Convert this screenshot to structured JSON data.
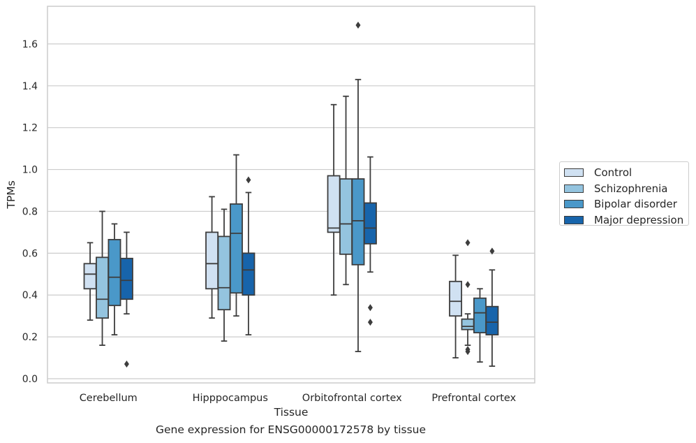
{
  "chart_data": {
    "type": "box",
    "ylabel": "TPMs",
    "xlabel": "Tissue",
    "caption": "Gene expression for ENSG00000172578 by tissue",
    "ylim": [
      -0.02,
      1.78
    ],
    "yticks": [
      "0.0",
      "0.2",
      "0.4",
      "0.6",
      "0.8",
      "1.0",
      "1.2",
      "1.4",
      "1.6"
    ],
    "grid": true,
    "legend_position": "right-center",
    "categories": [
      "Cerebellum",
      "Hipppocampus",
      "Orbitofrontal cortex",
      "Prefrontal cortex"
    ],
    "series": [
      {
        "name": "Control",
        "color": "#d0e1f2",
        "boxes": [
          {
            "whislo": 0.28,
            "q1": 0.43,
            "med": 0.5,
            "q3": 0.55,
            "whishi": 0.65,
            "fliers": []
          },
          {
            "whislo": 0.29,
            "q1": 0.43,
            "med": 0.55,
            "q3": 0.7,
            "whishi": 0.87,
            "fliers": []
          },
          {
            "whislo": 0.4,
            "q1": 0.7,
            "med": 0.72,
            "q3": 0.97,
            "whishi": 1.31,
            "fliers": []
          },
          {
            "whislo": 0.1,
            "q1": 0.3,
            "med": 0.37,
            "q3": 0.465,
            "whishi": 0.59,
            "fliers": []
          }
        ]
      },
      {
        "name": "Schizophrenia",
        "color": "#94c4df",
        "boxes": [
          {
            "whislo": 0.16,
            "q1": 0.29,
            "med": 0.38,
            "q3": 0.58,
            "whishi": 0.8,
            "fliers": []
          },
          {
            "whislo": 0.18,
            "q1": 0.33,
            "med": 0.435,
            "q3": 0.68,
            "whishi": 0.81,
            "fliers": []
          },
          {
            "whislo": 0.45,
            "q1": 0.595,
            "med": 0.74,
            "q3": 0.955,
            "whishi": 1.35,
            "fliers": []
          },
          {
            "whislo": 0.16,
            "q1": 0.235,
            "med": 0.25,
            "q3": 0.285,
            "whishi": 0.31,
            "fliers": [
              0.65,
              0.45,
              0.14,
              0.13
            ]
          }
        ]
      },
      {
        "name": "Bipolar disorder",
        "color": "#4a98c9",
        "boxes": [
          {
            "whislo": 0.21,
            "q1": 0.35,
            "med": 0.485,
            "q3": 0.665,
            "whishi": 0.74,
            "fliers": []
          },
          {
            "whislo": 0.3,
            "q1": 0.41,
            "med": 0.695,
            "q3": 0.835,
            "whishi": 1.07,
            "fliers": []
          },
          {
            "whislo": 0.13,
            "q1": 0.545,
            "med": 0.755,
            "q3": 0.955,
            "whishi": 1.43,
            "fliers": [
              1.69
            ]
          },
          {
            "whislo": 0.08,
            "q1": 0.22,
            "med": 0.315,
            "q3": 0.385,
            "whishi": 0.43,
            "fliers": []
          }
        ]
      },
      {
        "name": "Major depression",
        "color": "#1764ab",
        "boxes": [
          {
            "whislo": 0.31,
            "q1": 0.38,
            "med": 0.47,
            "q3": 0.575,
            "whishi": 0.7,
            "fliers": [
              0.07
            ]
          },
          {
            "whislo": 0.21,
            "q1": 0.4,
            "med": 0.52,
            "q3": 0.6,
            "whishi": 0.89,
            "fliers": [
              0.95
            ]
          },
          {
            "whislo": 0.51,
            "q1": 0.645,
            "med": 0.72,
            "q3": 0.84,
            "whishi": 1.06,
            "fliers": [
              0.34,
              0.27
            ]
          },
          {
            "whislo": 0.06,
            "q1": 0.21,
            "med": 0.27,
            "q3": 0.345,
            "whishi": 0.52,
            "fliers": [
              0.61
            ]
          }
        ]
      }
    ]
  }
}
